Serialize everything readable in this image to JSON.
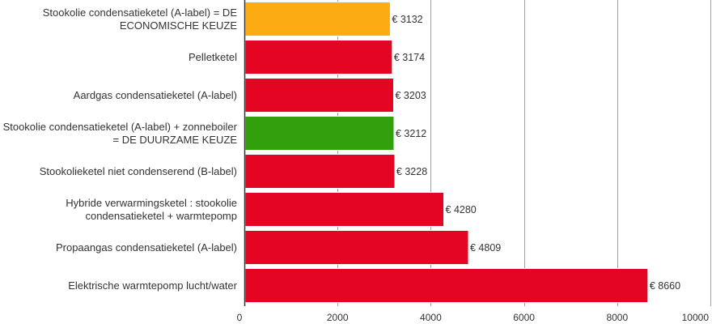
{
  "chart_data": {
    "type": "bar",
    "orientation": "horizontal",
    "categories": [
      [
        "Stookolie condensatieketel (A-label) = DE",
        "ECONOMISCHE KEUZE"
      ],
      [
        "Pelletketel"
      ],
      [
        "Aardgas condensatieketel (A-label)"
      ],
      [
        "Stookolie condensatieketel (A-label) + zonneboiler",
        "= DE DUURZAME KEUZE"
      ],
      [
        "Stookolieketel niet condenserend (B-label)"
      ],
      [
        "Hybride verwarmingsketel : stookolie",
        "condensatieketel + warmtepomp"
      ],
      [
        "Propaangas condensatieketel (A-label)"
      ],
      [
        "Elektrische warmtepomp lucht/water"
      ]
    ],
    "values": [
      3132,
      3174,
      3203,
      3212,
      3228,
      4280,
      4809,
      8660
    ],
    "value_labels": [
      "€ 3132",
      "€ 3174",
      "€ 3203",
      "€ 3212",
      "€ 3228",
      "€ 4280",
      "€ 4809",
      "€ 8660"
    ],
    "bar_colors": [
      "#fcab13",
      "#e30521",
      "#e30521",
      "#31a00c",
      "#e30521",
      "#e30521",
      "#e30521",
      "#e30521"
    ],
    "xticks": [
      0,
      2000,
      4000,
      6000,
      8000,
      10000
    ],
    "xlim": [
      0,
      10000
    ],
    "grid": true,
    "gridline_color": "#a0a0a0",
    "axis_color": "#333333",
    "title": "",
    "xlabel": "",
    "ylabel": ""
  }
}
